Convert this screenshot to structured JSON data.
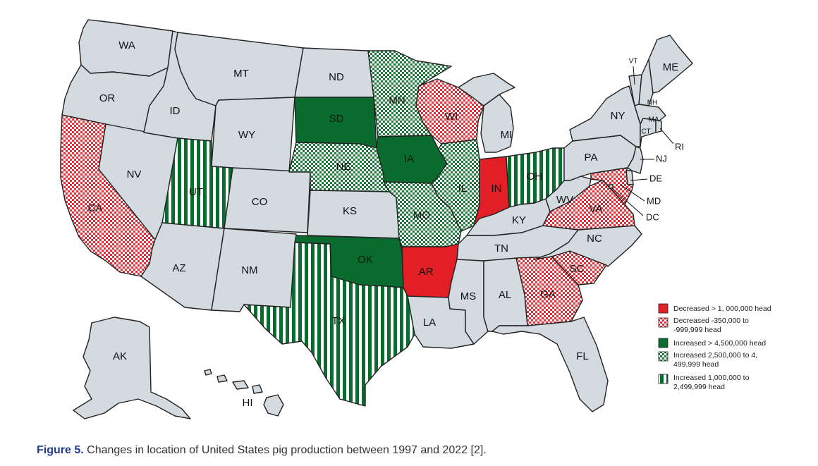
{
  "caption": {
    "label": "Figure 5.",
    "text": "Changes in location of United States pig production between 1997 and 2022 [2]."
  },
  "colors": {
    "none": "#d4dbe0",
    "red_solid": "#e21f26",
    "red_check": "#e0303a",
    "green_solid": "#0a6b2e",
    "green_check": "#1d7a3a",
    "green_stripe": "#0a6b2e"
  },
  "categories": {
    "red_solid": "Decreased > 1, 000,000 head",
    "red_check": [
      "Decreased -350,000 to",
      "-999,999 head"
    ],
    "green_solid": "Increased > 4,500,000 head",
    "green_check": [
      "Increased 2,500,000 to 4,",
      "499,999 head"
    ],
    "green_stripe": [
      "Increased 1,000,000 to",
      "2,499,999 head"
    ]
  },
  "states": [
    {
      "abbr": "WA",
      "category": "none"
    },
    {
      "abbr": "OR",
      "category": "none"
    },
    {
      "abbr": "CA",
      "category": "red_check"
    },
    {
      "abbr": "NV",
      "category": "none"
    },
    {
      "abbr": "ID",
      "category": "none"
    },
    {
      "abbr": "MT",
      "category": "none"
    },
    {
      "abbr": "WY",
      "category": "none"
    },
    {
      "abbr": "UT",
      "category": "green_stripe"
    },
    {
      "abbr": "CO",
      "category": "none"
    },
    {
      "abbr": "AZ",
      "category": "none"
    },
    {
      "abbr": "NM",
      "category": "none"
    },
    {
      "abbr": "ND",
      "category": "none"
    },
    {
      "abbr": "SD",
      "category": "green_solid"
    },
    {
      "abbr": "NE",
      "category": "green_check"
    },
    {
      "abbr": "KS",
      "category": "none"
    },
    {
      "abbr": "OK",
      "category": "green_solid"
    },
    {
      "abbr": "TX",
      "category": "green_stripe"
    },
    {
      "abbr": "MN",
      "category": "green_check"
    },
    {
      "abbr": "IA",
      "category": "green_solid"
    },
    {
      "abbr": "MO",
      "category": "green_check"
    },
    {
      "abbr": "AR",
      "category": "red_solid"
    },
    {
      "abbr": "LA",
      "category": "none"
    },
    {
      "abbr": "WI",
      "category": "red_check"
    },
    {
      "abbr": "IL",
      "category": "green_check"
    },
    {
      "abbr": "MI",
      "category": "none"
    },
    {
      "abbr": "IN",
      "category": "red_solid"
    },
    {
      "abbr": "OH",
      "category": "green_stripe"
    },
    {
      "abbr": "KY",
      "category": "none"
    },
    {
      "abbr": "TN",
      "category": "none"
    },
    {
      "abbr": "MS",
      "category": "none"
    },
    {
      "abbr": "AL",
      "category": "none"
    },
    {
      "abbr": "GA",
      "category": "red_check"
    },
    {
      "abbr": "FL",
      "category": "none"
    },
    {
      "abbr": "SC",
      "category": "red_check"
    },
    {
      "abbr": "NC",
      "category": "none"
    },
    {
      "abbr": "VA",
      "category": "red_check"
    },
    {
      "abbr": "WV",
      "category": "none"
    },
    {
      "abbr": "PA",
      "category": "none"
    },
    {
      "abbr": "NY",
      "category": "none"
    },
    {
      "abbr": "VT",
      "category": "none"
    },
    {
      "abbr": "NH",
      "category": "none"
    },
    {
      "abbr": "ME",
      "category": "none"
    },
    {
      "abbr": "MA",
      "category": "none"
    },
    {
      "abbr": "CT",
      "category": "none"
    },
    {
      "abbr": "RI",
      "category": "none"
    },
    {
      "abbr": "NJ",
      "category": "none"
    },
    {
      "abbr": "DE",
      "category": "none"
    },
    {
      "abbr": "MD",
      "category": "red_check"
    },
    {
      "abbr": "DC",
      "category": "none"
    },
    {
      "abbr": "AK",
      "category": "none"
    },
    {
      "abbr": "HI",
      "category": "none"
    }
  ]
}
